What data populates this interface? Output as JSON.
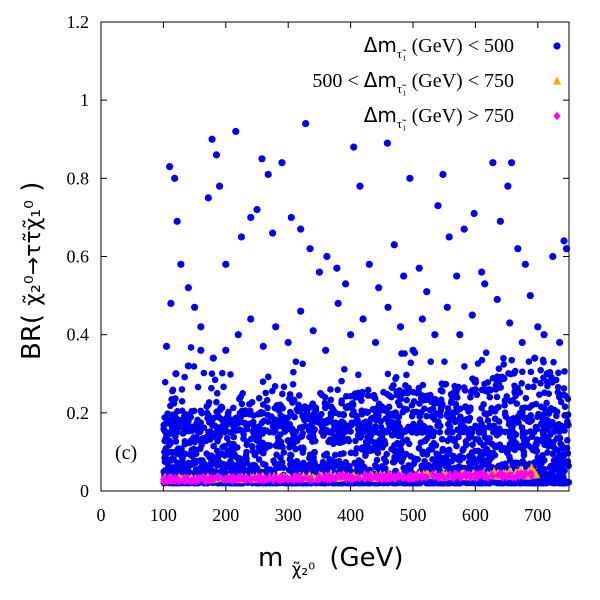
{
  "chart_data": {
    "type": "scatter",
    "panel_label": "(c)",
    "xlabel": {
      "main": "m",
      "sub": "χ̃₂⁰",
      "unit": "(GeV)"
    },
    "ylabel": {
      "main": "BR(",
      "sub": "χ̃₂⁰→ττ̃χ̃₁⁰",
      "unit": ")"
    },
    "xlim": [
      0,
      750
    ],
    "ylim": [
      0,
      1.2
    ],
    "x_ticks": [
      0,
      100,
      200,
      300,
      400,
      500,
      600,
      700
    ],
    "y_ticks": [
      0,
      0.2,
      0.4,
      0.6,
      0.8,
      1,
      1.2
    ],
    "y_tick_labels": [
      "0",
      "0.2",
      "0.4",
      "0.6",
      "0.8",
      "1",
      "1.2"
    ],
    "grid": false,
    "legend_position": "top-right",
    "series": [
      {
        "name": "Δm_τ̃₁ (GeV) < 500",
        "legend_prefix": "",
        "legend_suffix": " (GeV) < 500",
        "color": "#0000ee",
        "marker": "circle",
        "points": [
          [
            110,
            0.83
          ],
          [
            118,
            0.8
          ],
          [
            122,
            0.69
          ],
          [
            128,
            0.58
          ],
          [
            112,
            0.48
          ],
          [
            105,
            0.37
          ],
          [
            140,
            0.52
          ],
          [
            150,
            0.47
          ],
          [
            160,
            0.42
          ],
          [
            172,
            0.75
          ],
          [
            178,
            0.9
          ],
          [
            185,
            0.86
          ],
          [
            190,
            0.78
          ],
          [
            200,
            0.58
          ],
          [
            216,
            0.92
          ],
          [
            225,
            0.65
          ],
          [
            240,
            0.7
          ],
          [
            250,
            0.72
          ],
          [
            258,
            0.85
          ],
          [
            268,
            0.81
          ],
          [
            275,
            0.66
          ],
          [
            290,
            0.84
          ],
          [
            305,
            0.7
          ],
          [
            320,
            0.67
          ],
          [
            328,
            0.94
          ],
          [
            335,
            0.62
          ],
          [
            350,
            0.56
          ],
          [
            362,
            0.6
          ],
          [
            378,
            0.57
          ],
          [
            392,
            0.53
          ],
          [
            405,
            0.88
          ],
          [
            415,
            0.78
          ],
          [
            430,
            0.58
          ],
          [
            445,
            0.52
          ],
          [
            459,
            0.89
          ],
          [
            470,
            0.63
          ],
          [
            485,
            0.55
          ],
          [
            495,
            0.8
          ],
          [
            510,
            0.57
          ],
          [
            522,
            0.51
          ],
          [
            540,
            0.73
          ],
          [
            548,
            0.81
          ],
          [
            558,
            0.65
          ],
          [
            570,
            0.55
          ],
          [
            582,
            0.67
          ],
          [
            598,
            0.71
          ],
          [
            610,
            0.56
          ],
          [
            628,
            0.84
          ],
          [
            640,
            0.69
          ],
          [
            652,
            0.78
          ],
          [
            658,
            0.84
          ],
          [
            668,
            0.62
          ],
          [
            680,
            0.58
          ],
          [
            688,
            0.5
          ],
          [
            700,
            0.42
          ],
          [
            710,
            0.4
          ],
          [
            724,
            0.6
          ],
          [
            742,
            0.64
          ],
          [
            746,
            0.62
          ],
          [
            735,
            0.38
          ],
          [
            715,
            0.3
          ],
          [
            695,
            0.34
          ],
          [
            675,
            0.38
          ],
          [
            655,
            0.43
          ],
          [
            635,
            0.49
          ],
          [
            615,
            0.53
          ],
          [
            595,
            0.45
          ],
          [
            575,
            0.4
          ],
          [
            555,
            0.47
          ],
          [
            535,
            0.4
          ],
          [
            515,
            0.44
          ],
          [
            500,
            0.36
          ],
          [
            480,
            0.42
          ],
          [
            460,
            0.47
          ],
          [
            440,
            0.38
          ],
          [
            420,
            0.44
          ],
          [
            400,
            0.4
          ],
          [
            380,
            0.48
          ],
          [
            360,
            0.36
          ],
          [
            340,
            0.41
          ],
          [
            320,
            0.46
          ],
          [
            300,
            0.38
          ],
          [
            280,
            0.42
          ],
          [
            260,
            0.37
          ],
          [
            240,
            0.44
          ],
          [
            220,
            0.4
          ],
          [
            200,
            0.36
          ],
          [
            180,
            0.34
          ],
          [
            160,
            0.36
          ],
          [
            140,
            0.32
          ],
          [
            120,
            0.3
          ]
        ]
      },
      {
        "name": "500 < Δm_τ̃₁ (GeV) < 750",
        "legend_prefix": "500 < ",
        "legend_suffix": " (GeV) < 750",
        "color": "#f5a800",
        "marker": "triangle",
        "points": [
          [
            100,
            0.03
          ],
          [
            140,
            0.028
          ],
          [
            200,
            0.03
          ],
          [
            260,
            0.03
          ],
          [
            320,
            0.031
          ],
          [
            380,
            0.032
          ],
          [
            440,
            0.032
          ],
          [
            500,
            0.034
          ],
          [
            550,
            0.035
          ],
          [
            600,
            0.038
          ],
          [
            620,
            0.042
          ],
          [
            630,
            0.05
          ],
          [
            645,
            0.045
          ],
          [
            655,
            0.052
          ],
          [
            665,
            0.048
          ],
          [
            672,
            0.055
          ],
          [
            678,
            0.045
          ],
          [
            685,
            0.05
          ],
          [
            690,
            0.06
          ],
          [
            695,
            0.048
          ]
        ]
      },
      {
        "name": "Δm_τ̃₁ (GeV) > 750",
        "legend_prefix": "",
        "legend_suffix": " (GeV) > 750",
        "color": "#ff00ff",
        "marker": "diamond",
        "points": [
          [
            100,
            0.03
          ],
          [
            150,
            0.027
          ],
          [
            200,
            0.028
          ],
          [
            250,
            0.028
          ],
          [
            300,
            0.029
          ],
          [
            350,
            0.029
          ],
          [
            400,
            0.03
          ],
          [
            450,
            0.031
          ],
          [
            500,
            0.032
          ],
          [
            550,
            0.033
          ],
          [
            600,
            0.034
          ],
          [
            650,
            0.036
          ],
          [
            690,
            0.038
          ]
        ]
      }
    ]
  }
}
